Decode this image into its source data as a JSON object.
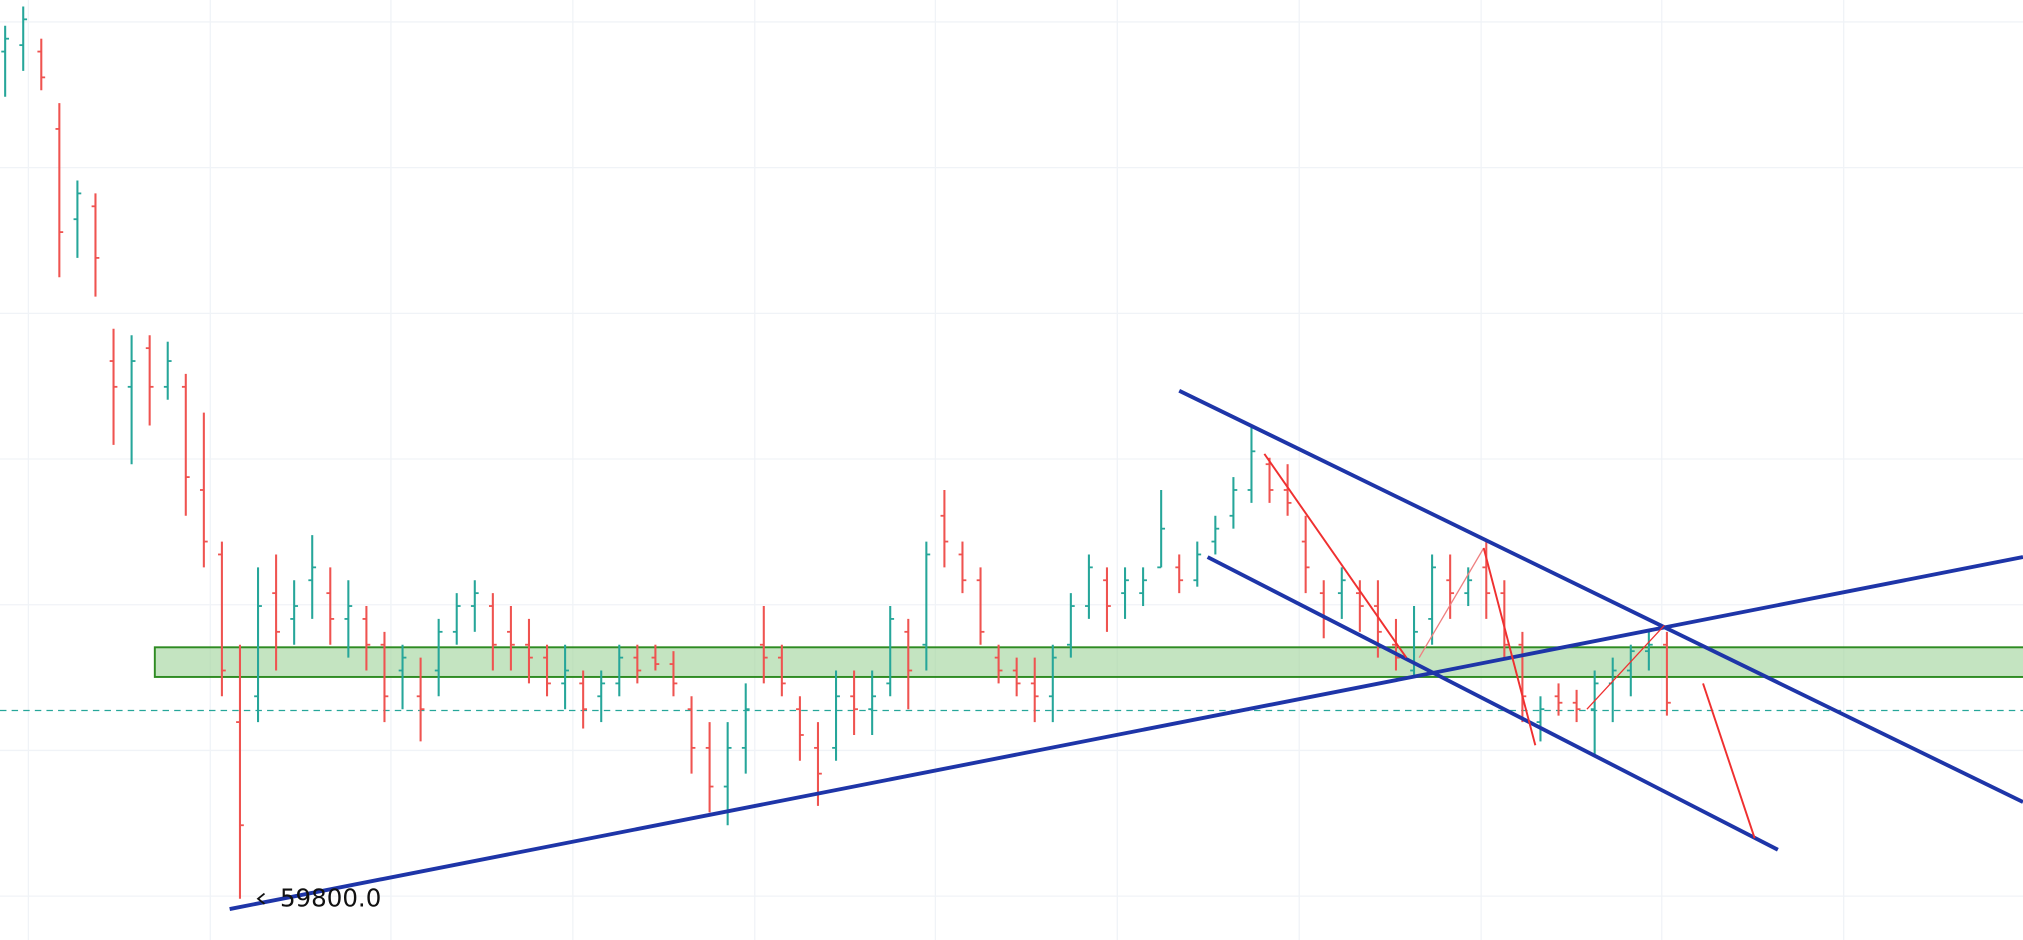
{
  "chart_data": {
    "type": "ohlc",
    "ylim": [
      59480,
      66770
    ],
    "up_color": "#26a69a",
    "down_color": "#ef5350",
    "open": [
      66370,
      66420,
      66370,
      65770,
      65070,
      65170,
      63970,
      63770,
      64070,
      63770,
      63770,
      62970,
      62470,
      61170,
      61370,
      62170,
      61970,
      62270,
      62170,
      61970,
      61970,
      61770,
      61570,
      61370,
      61570,
      61870,
      62070,
      62070,
      61870,
      61770,
      61670,
      61470,
      61470,
      61370,
      61470,
      61670,
      61670,
      61620,
      61270,
      60970,
      60670,
      60970,
      61770,
      61670,
      61270,
      60970,
      60970,
      61370,
      61270,
      61470,
      61870,
      61770,
      62770,
      62470,
      62270,
      61670,
      61570,
      61470,
      61370,
      61770,
      62070,
      62270,
      62170,
      62170,
      62370,
      62370,
      62270,
      62570,
      62770,
      62970,
      63170,
      62970,
      62570,
      62170,
      62170,
      62170,
      62070,
      61770,
      61570,
      61970,
      62270,
      62170,
      62370,
      62170,
      61770,
      61170,
      61370,
      61320,
      61270,
      61470,
      61570,
      61720,
      61770
    ],
    "high": [
      66570,
      66720,
      66470,
      65970,
      65370,
      65270,
      64220,
      64170,
      64170,
      64120,
      63870,
      63570,
      62570,
      61770,
      62370,
      62470,
      62270,
      62620,
      62370,
      62270,
      62070,
      61870,
      61770,
      61670,
      61970,
      62170,
      62270,
      62170,
      62070,
      61970,
      61770,
      61770,
      61570,
      61570,
      61770,
      61770,
      61770,
      61720,
      61370,
      61170,
      61170,
      61470,
      62070,
      61770,
      61370,
      61170,
      61570,
      61570,
      61570,
      62070,
      61970,
      62570,
      62970,
      62570,
      62370,
      61770,
      61670,
      61670,
      61770,
      62170,
      62470,
      62370,
      62370,
      62370,
      62970,
      62470,
      62570,
      62770,
      63070,
      63470,
      63220,
      63170,
      62770,
      62270,
      62370,
      62270,
      62270,
      61970,
      62070,
      62470,
      62470,
      62370,
      62570,
      62270,
      61870,
      61370,
      61470,
      61420,
      61570,
      61670,
      61770,
      61870,
      61870
    ],
    "low": [
      66020,
      66220,
      66070,
      64620,
      64770,
      64470,
      63320,
      63170,
      63470,
      63670,
      62770,
      62370,
      61370,
      59800,
      61170,
      61570,
      61770,
      61970,
      61770,
      61670,
      61570,
      61170,
      61270,
      61020,
      61370,
      61770,
      61870,
      61570,
      61570,
      61470,
      61370,
      61270,
      61120,
      61170,
      61370,
      61470,
      61570,
      61370,
      60770,
      60470,
      60370,
      60770,
      61470,
      61370,
      60870,
      60520,
      60870,
      61070,
      61070,
      61370,
      61270,
      61570,
      62370,
      62170,
      61770,
      61470,
      61370,
      61170,
      61170,
      61670,
      61970,
      61870,
      61970,
      62070,
      62370,
      62170,
      62220,
      62470,
      62670,
      62870,
      62870,
      62770,
      62170,
      61820,
      61970,
      61870,
      61670,
      61570,
      61520,
      61770,
      61970,
      62070,
      61970,
      61670,
      61170,
      61020,
      61220,
      61170,
      60920,
      61170,
      61370,
      61570,
      61220
    ],
    "close": [
      66470,
      66620,
      66170,
      64970,
      65270,
      64770,
      63770,
      63970,
      63770,
      63970,
      63070,
      62570,
      61570,
      60370,
      62070,
      61870,
      62070,
      62370,
      61970,
      62070,
      61770,
      61370,
      61670,
      61270,
      61870,
      62070,
      62170,
      61770,
      61770,
      61670,
      61470,
      61570,
      61270,
      61470,
      61670,
      61570,
      61620,
      61470,
      60970,
      60670,
      60970,
      61270,
      61670,
      61470,
      61070,
      60770,
      61370,
      61270,
      61370,
      61970,
      61570,
      62470,
      62570,
      62270,
      61870,
      61570,
      61470,
      61370,
      61670,
      62070,
      62370,
      62070,
      62270,
      62270,
      62670,
      62270,
      62470,
      62670,
      62970,
      63270,
      62970,
      62870,
      62370,
      61970,
      62270,
      62070,
      61870,
      61670,
      61870,
      62370,
      62170,
      62270,
      62170,
      61770,
      61370,
      61270,
      61320,
      61270,
      61470,
      61570,
      61720,
      61770,
      61320
    ],
    "low_marker": {
      "value": 59800,
      "label": "59800.0"
    }
  }
}
